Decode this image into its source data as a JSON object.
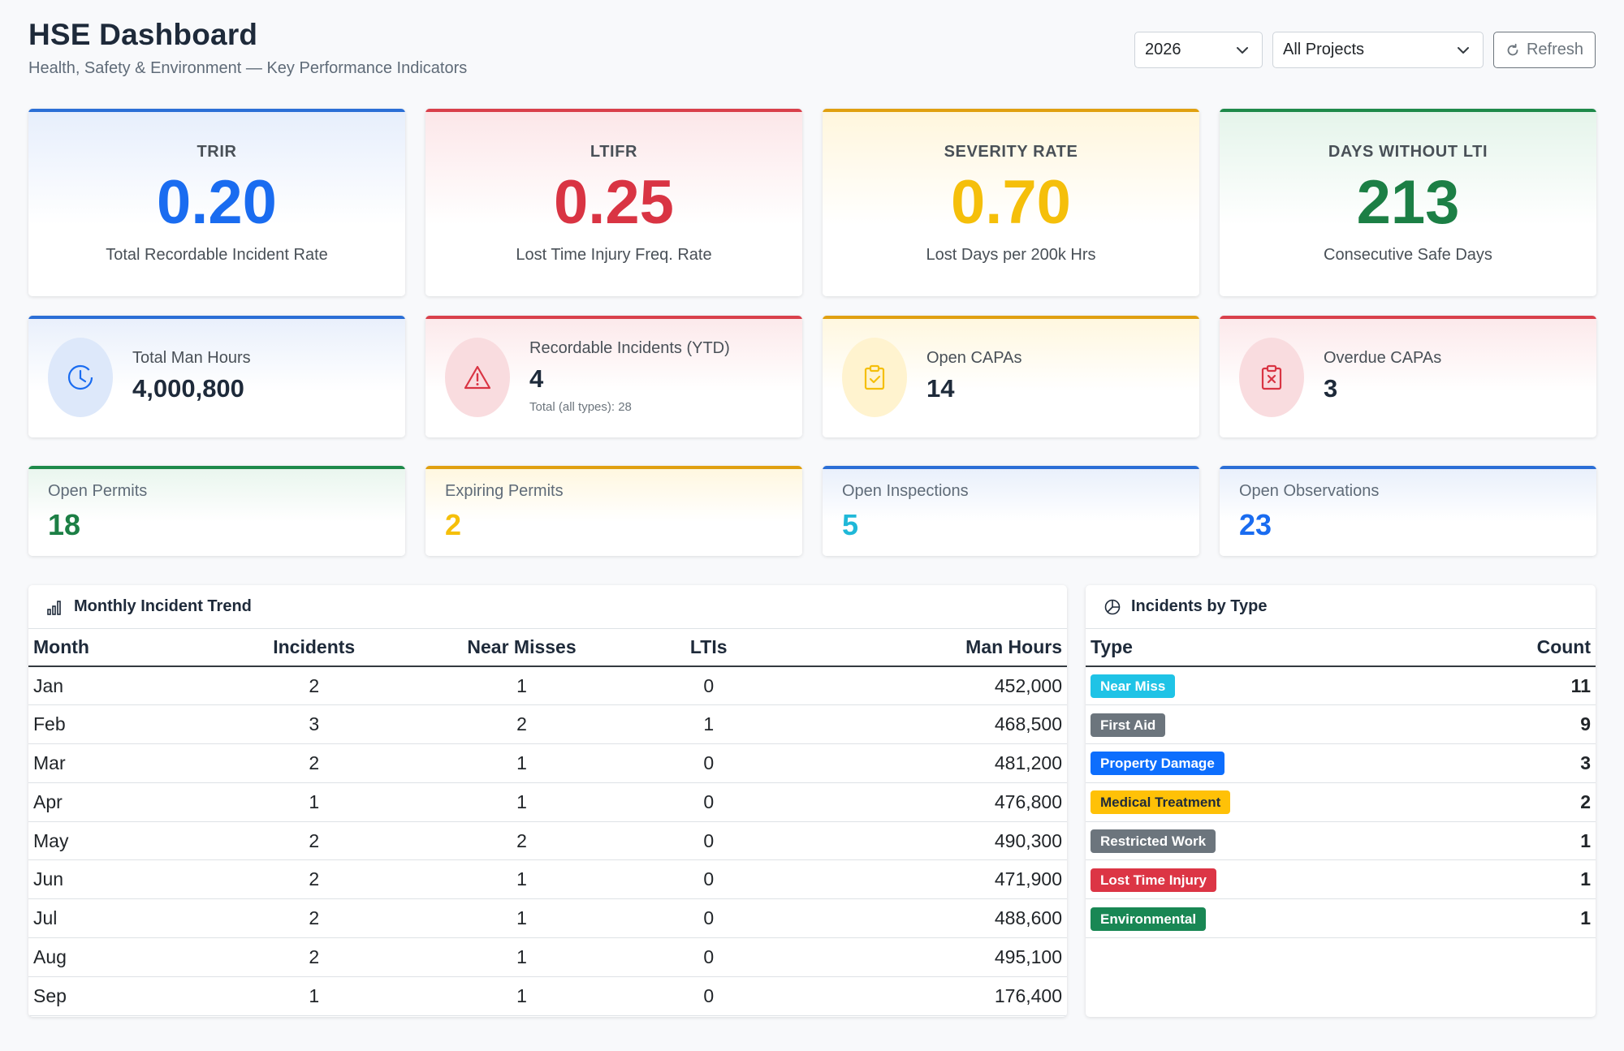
{
  "header": {
    "title": "HSE Dashboard",
    "subtitle": "Health, Safety & Environment — Key Performance Indicators"
  },
  "controls": {
    "year": "2026",
    "project": "All Projects",
    "refresh_label": "Refresh"
  },
  "kpi_big": [
    {
      "label": "TRIR",
      "value": "0.20",
      "sub": "Total Recordable Incident Rate",
      "accent": "#2b6fd6",
      "color": "#1a6cf0"
    },
    {
      "label": "LTIFR",
      "value": "0.25",
      "sub": "Lost Time Injury Freq. Rate",
      "accent": "#d9404b",
      "color": "#d93443"
    },
    {
      "label": "SEVERITY RATE",
      "value": "0.70",
      "sub": "Lost Days per 200k Hrs",
      "accent": "#e0a010",
      "color": "#f5bf0a"
    },
    {
      "label": "DAYS WITHOUT LTI",
      "value": "213",
      "sub": "Consecutive Safe Days",
      "accent": "#1e8a4a",
      "color": "#1c7f45"
    }
  ],
  "kpi_mid": [
    {
      "label": "Total Man Hours",
      "value": "4,000,800",
      "icon": "clock-icon"
    },
    {
      "label": "Recordable Incidents (YTD)",
      "value": "4",
      "sub": "Total (all types): 28",
      "icon": "warning-icon"
    },
    {
      "label": "Open CAPAs",
      "value": "14",
      "icon": "clipboard-check-icon"
    },
    {
      "label": "Overdue CAPAs",
      "value": "3",
      "icon": "clipboard-x-icon"
    }
  ],
  "kpi_small": [
    {
      "label": "Open Permits",
      "value": "18",
      "color": "#1c7f45"
    },
    {
      "label": "Expiring Permits",
      "value": "2",
      "color": "#f5bf0a"
    },
    {
      "label": "Open Inspections",
      "value": "5",
      "color": "#1fb8d8"
    },
    {
      "label": "Open Observations",
      "value": "23",
      "color": "#1a6cf0"
    }
  ],
  "trend": {
    "title": "Monthly Incident Trend",
    "columns": [
      "Month",
      "Incidents",
      "Near Misses",
      "LTIs",
      "Man Hours"
    ],
    "rows": [
      [
        "Jan",
        "2",
        "1",
        "0",
        "452,000"
      ],
      [
        "Feb",
        "3",
        "2",
        "1",
        "468,500"
      ],
      [
        "Mar",
        "2",
        "1",
        "0",
        "481,200"
      ],
      [
        "Apr",
        "1",
        "1",
        "0",
        "476,800"
      ],
      [
        "May",
        "2",
        "2",
        "0",
        "490,300"
      ],
      [
        "Jun",
        "2",
        "1",
        "0",
        "471,900"
      ],
      [
        "Jul",
        "2",
        "1",
        "0",
        "488,600"
      ],
      [
        "Aug",
        "2",
        "1",
        "0",
        "495,100"
      ],
      [
        "Sep",
        "1",
        "1",
        "0",
        "176,400"
      ]
    ]
  },
  "by_type": {
    "title": "Incidents by Type",
    "columns": [
      "Type",
      "Count"
    ],
    "rows": [
      {
        "type": "Near Miss",
        "count": "11",
        "bg": "#1fc3e6",
        "fg": "#ffffff"
      },
      {
        "type": "First Aid",
        "count": "9",
        "bg": "#6c757d",
        "fg": "#ffffff"
      },
      {
        "type": "Property Damage",
        "count": "3",
        "bg": "#0d6efd",
        "fg": "#ffffff"
      },
      {
        "type": "Medical Treatment",
        "count": "2",
        "bg": "#ffc107",
        "fg": "#1e2a3a"
      },
      {
        "type": "Restricted Work",
        "count": "1",
        "bg": "#6c757d",
        "fg": "#ffffff"
      },
      {
        "type": "Lost Time Injury",
        "count": "1",
        "bg": "#dc3545",
        "fg": "#ffffff"
      },
      {
        "type": "Environmental",
        "count": "1",
        "bg": "#198754",
        "fg": "#ffffff"
      }
    ]
  }
}
